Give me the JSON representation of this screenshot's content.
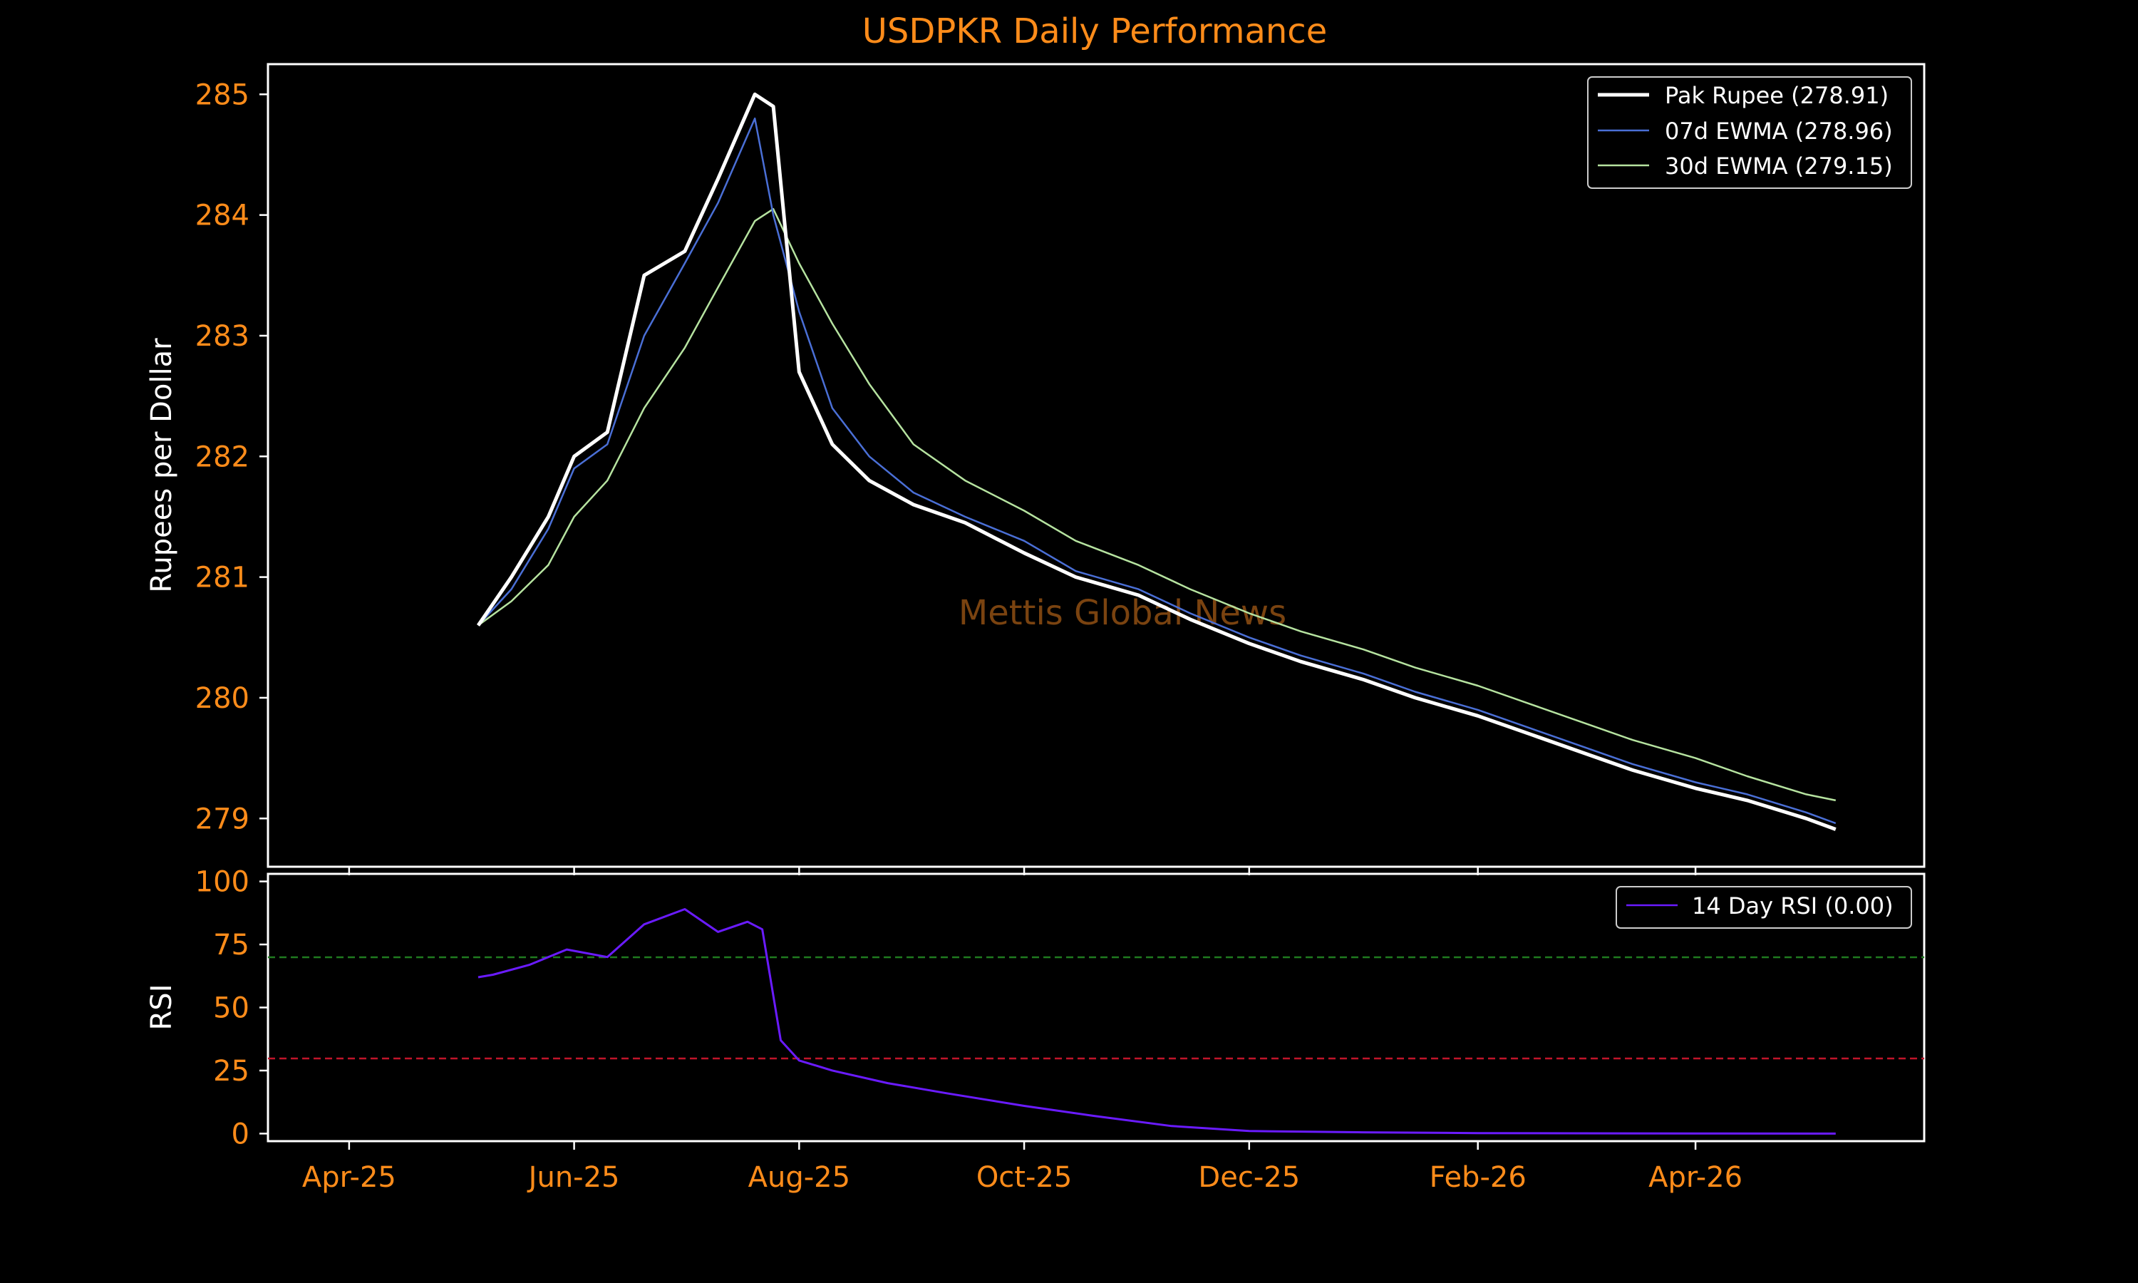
{
  "colors": {
    "background": "#000000",
    "accent": "#ff8c1a",
    "axis": "#ffffff",
    "pak_rupee": "#ffffff",
    "ewma7": "#4a6fd6",
    "ewma30": "#b6e3a0",
    "rsi": "#6a1bff",
    "rsi_overbought": "#1f7a1f",
    "rsi_oversold": "#c0152a",
    "watermark": "#7a4310"
  },
  "chart_data": [
    {
      "type": "line",
      "title": "USDPKR Daily Performance",
      "ylabel": "Rupees per Dollar",
      "xlabel": "",
      "ylim": [
        278.6,
        285.25
      ],
      "yticks": [
        "285",
        "284",
        "283",
        "282",
        "281",
        "280",
        "279"
      ],
      "grid": false,
      "legend_position": "top-right",
      "watermark": "Mettis Global News",
      "x": [
        "2025-05-06",
        "2025-05-15",
        "2025-05-25",
        "2025-06-01",
        "2025-06-10",
        "2025-06-20",
        "2025-07-01",
        "2025-07-10",
        "2025-07-20",
        "2025-07-25",
        "2025-08-01",
        "2025-08-10",
        "2025-08-20",
        "2025-09-01",
        "2025-09-15",
        "2025-10-01",
        "2025-10-15",
        "2025-11-01",
        "2025-11-15",
        "2025-12-01",
        "2025-12-15",
        "2026-01-01",
        "2026-01-15",
        "2026-02-01",
        "2026-02-15",
        "2026-03-01",
        "2026-03-15",
        "2026-04-01",
        "2026-04-15",
        "2026-05-01",
        "2026-05-09"
      ],
      "series": [
        {
          "name": "Pak Rupee (278.91)",
          "values": [
            280.6,
            281.0,
            281.5,
            282.0,
            282.2,
            283.5,
            283.7,
            284.3,
            285.0,
            284.9,
            282.7,
            282.1,
            281.8,
            281.6,
            281.45,
            281.2,
            281.0,
            280.85,
            280.65,
            280.45,
            280.3,
            280.15,
            280.0,
            279.85,
            279.7,
            279.55,
            279.4,
            279.25,
            279.15,
            279.0,
            278.91
          ]
        },
        {
          "name": "07d EWMA (278.96)",
          "values": [
            280.6,
            280.9,
            281.4,
            281.9,
            282.1,
            283.0,
            283.6,
            284.1,
            284.8,
            284.0,
            283.2,
            282.4,
            282.0,
            281.7,
            281.5,
            281.3,
            281.05,
            280.9,
            280.7,
            280.5,
            280.35,
            280.2,
            280.05,
            279.9,
            279.75,
            279.6,
            279.45,
            279.3,
            279.2,
            279.05,
            278.96
          ]
        },
        {
          "name": "30d EWMA (279.15)",
          "values": [
            280.6,
            280.8,
            281.1,
            281.5,
            281.8,
            282.4,
            282.9,
            283.4,
            283.95,
            284.05,
            283.6,
            283.1,
            282.6,
            282.1,
            281.8,
            281.55,
            281.3,
            281.1,
            280.9,
            280.7,
            280.55,
            280.4,
            280.25,
            280.1,
            279.95,
            279.8,
            279.65,
            279.5,
            279.35,
            279.2,
            279.15
          ]
        }
      ]
    },
    {
      "type": "line",
      "ylabel": "RSI",
      "xlabel": "",
      "ylim": [
        -3,
        103
      ],
      "yticks": [
        "100",
        "75",
        "50",
        "25",
        "0"
      ],
      "xticks": [
        "Apr-25",
        "Jun-25",
        "Aug-25",
        "Oct-25",
        "Dec-25",
        "Feb-26",
        "Apr-26"
      ],
      "xtick_dates": [
        "2025-04-01",
        "2025-06-01",
        "2025-08-01",
        "2025-10-01",
        "2025-12-01",
        "2026-02-01",
        "2026-04-01"
      ],
      "reference_lines": [
        70,
        30
      ],
      "grid": false,
      "legend_position": "top-right",
      "x": [
        "2025-05-06",
        "2025-05-10",
        "2025-05-20",
        "2025-05-30",
        "2025-06-10",
        "2025-06-20",
        "2025-07-01",
        "2025-07-10",
        "2025-07-18",
        "2025-07-22",
        "2025-07-27",
        "2025-08-01",
        "2025-08-10",
        "2025-08-25",
        "2025-09-10",
        "2025-10-01",
        "2025-10-20",
        "2025-11-10",
        "2025-12-01",
        "2026-01-01",
        "2026-02-01",
        "2026-03-01",
        "2026-04-01",
        "2026-05-09"
      ],
      "series": [
        {
          "name": "14 Day RSI (0.00)",
          "values": [
            62,
            63,
            67,
            73,
            70,
            83,
            89,
            80,
            84,
            81,
            37,
            29,
            25,
            20,
            16,
            11,
            7,
            3,
            1,
            0.5,
            0.2,
            0.1,
            0.05,
            0.0
          ]
        }
      ]
    }
  ]
}
